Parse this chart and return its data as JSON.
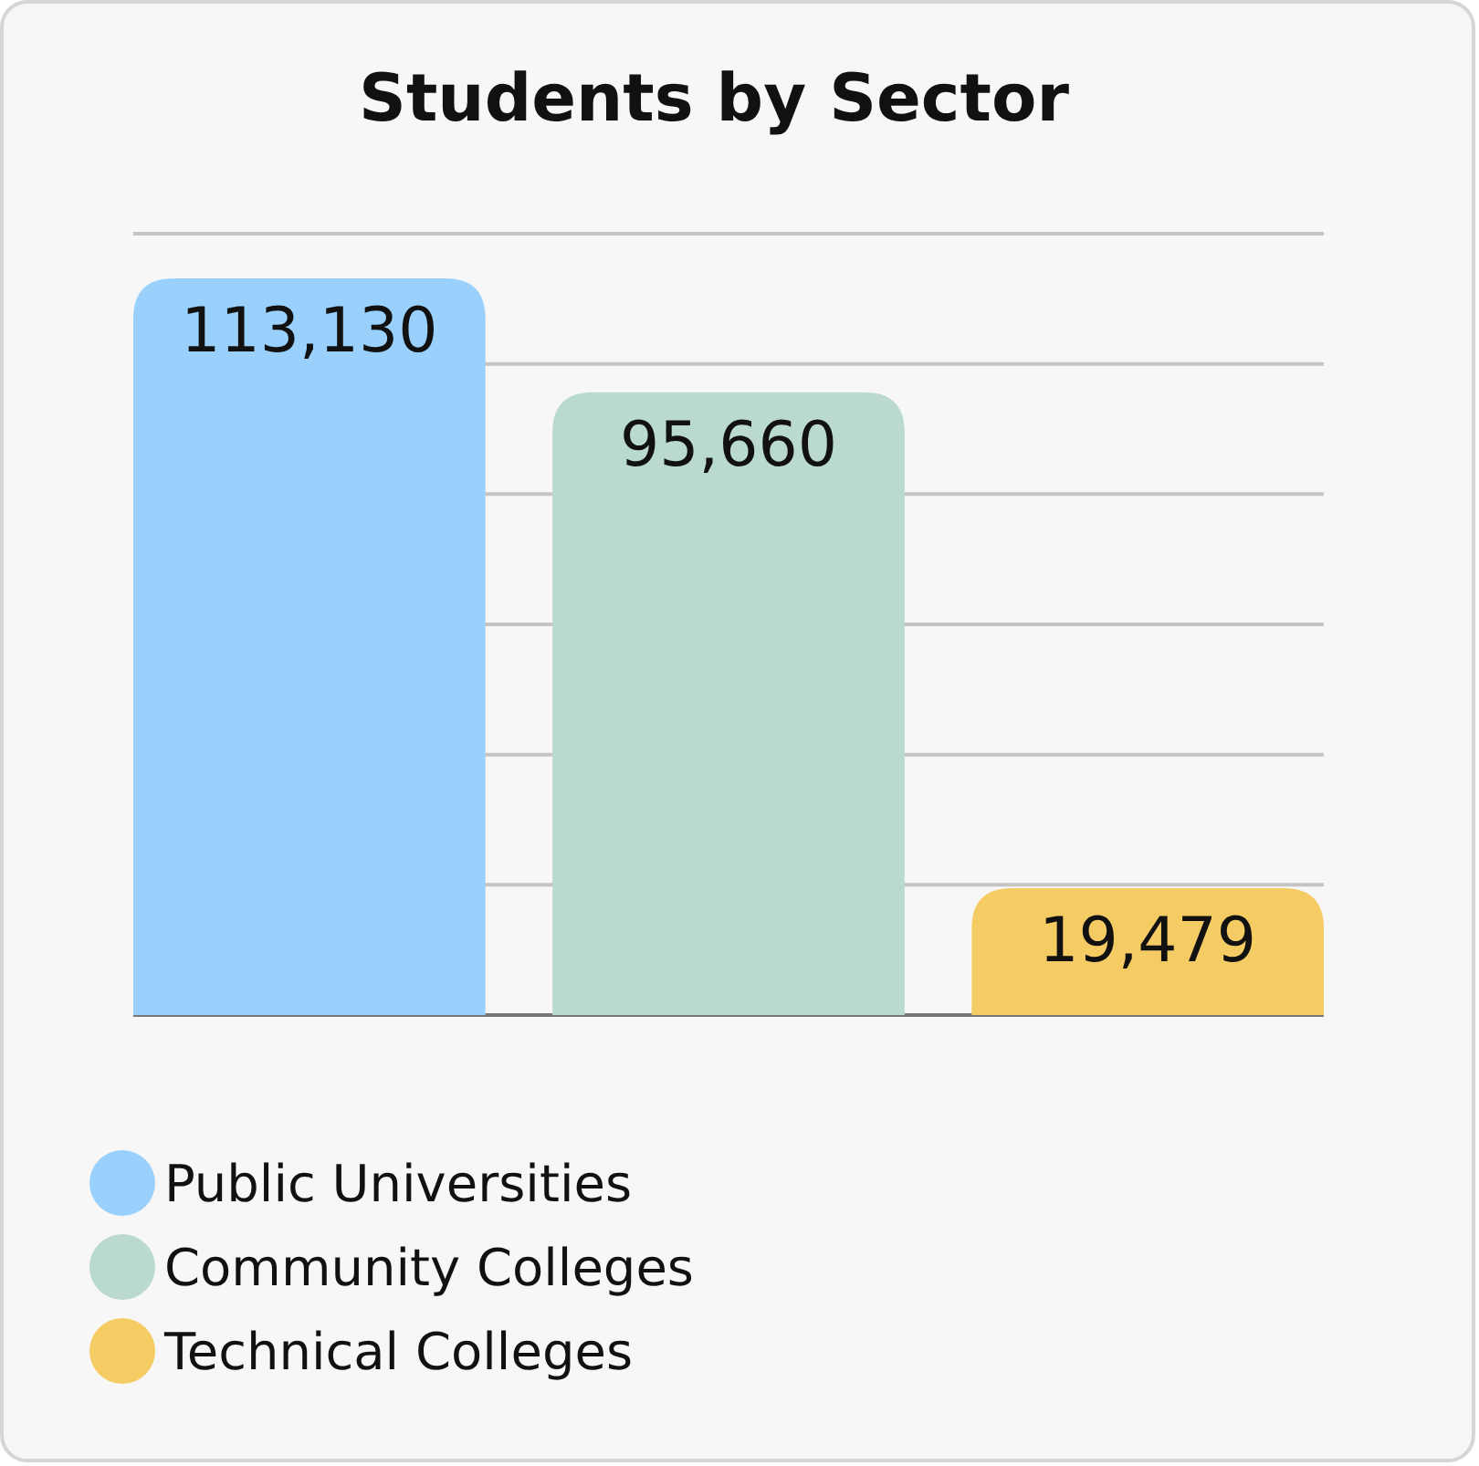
{
  "chart_data": {
    "type": "bar",
    "title": "Students by Sector",
    "categories": [
      null,
      null,
      null
    ],
    "series": [
      {
        "name": "Public Universities",
        "color": "#99d1fc",
        "values": [
          113130,
          null,
          null
        ],
        "value_labels": [
          "113,130",
          null,
          null
        ]
      },
      {
        "name": "Community Colleges",
        "color": "#b9d9d1",
        "values": [
          null,
          95660,
          null
        ],
        "value_labels": [
          null,
          "95,660",
          null
        ]
      },
      {
        "name": "Technical Colleges",
        "color": "#f5cb63",
        "values": [
          null,
          null,
          19479
        ],
        "value_labels": [
          null,
          null,
          "19,479"
        ]
      }
    ],
    "stacked": true,
    "grid": "y",
    "legend": "bottom left"
  }
}
